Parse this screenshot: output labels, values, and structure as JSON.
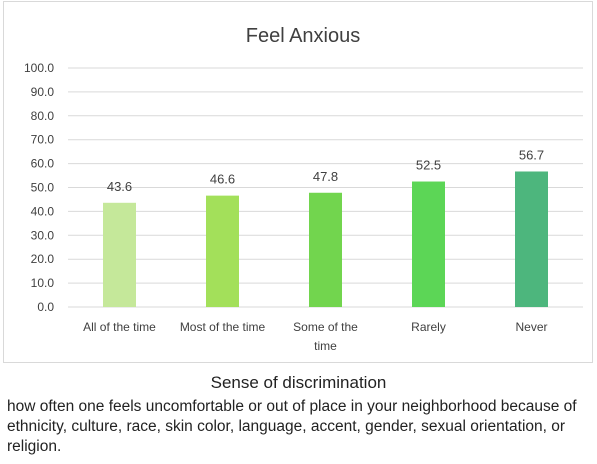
{
  "chart_data": {
    "type": "bar",
    "title": "Feel Anxious",
    "categories": [
      [
        "All of the time"
      ],
      [
        "Most of the time"
      ],
      [
        "Some of the",
        "time"
      ],
      [
        "Rarely"
      ],
      [
        "Never"
      ]
    ],
    "values": [
      43.6,
      46.6,
      47.8,
      52.5,
      56.7
    ],
    "value_labels": [
      "43.6",
      "46.6",
      "47.8",
      "52.5",
      "56.7"
    ],
    "bar_colors": [
      "#c5e89a",
      "#a3e05a",
      "#72d54e",
      "#5cd656",
      "#4db67d"
    ],
    "ylim": [
      0,
      100
    ],
    "yticks": [
      "0.0",
      "10.0",
      "20.0",
      "30.0",
      "40.0",
      "50.0",
      "60.0",
      "70.0",
      "80.0",
      "90.0",
      "100.0"
    ],
    "grid": true,
    "gridline_color": "#d9d9d9",
    "legend": "none",
    "xlabel": "",
    "ylabel": ""
  },
  "caption": {
    "heading": "Sense of discrimination",
    "body": "how often one feels uncomfortable or out of place in your neighborhood because of ethnicity, culture, race, skin color, language, accent, gender, sexual orientation, or religion."
  }
}
